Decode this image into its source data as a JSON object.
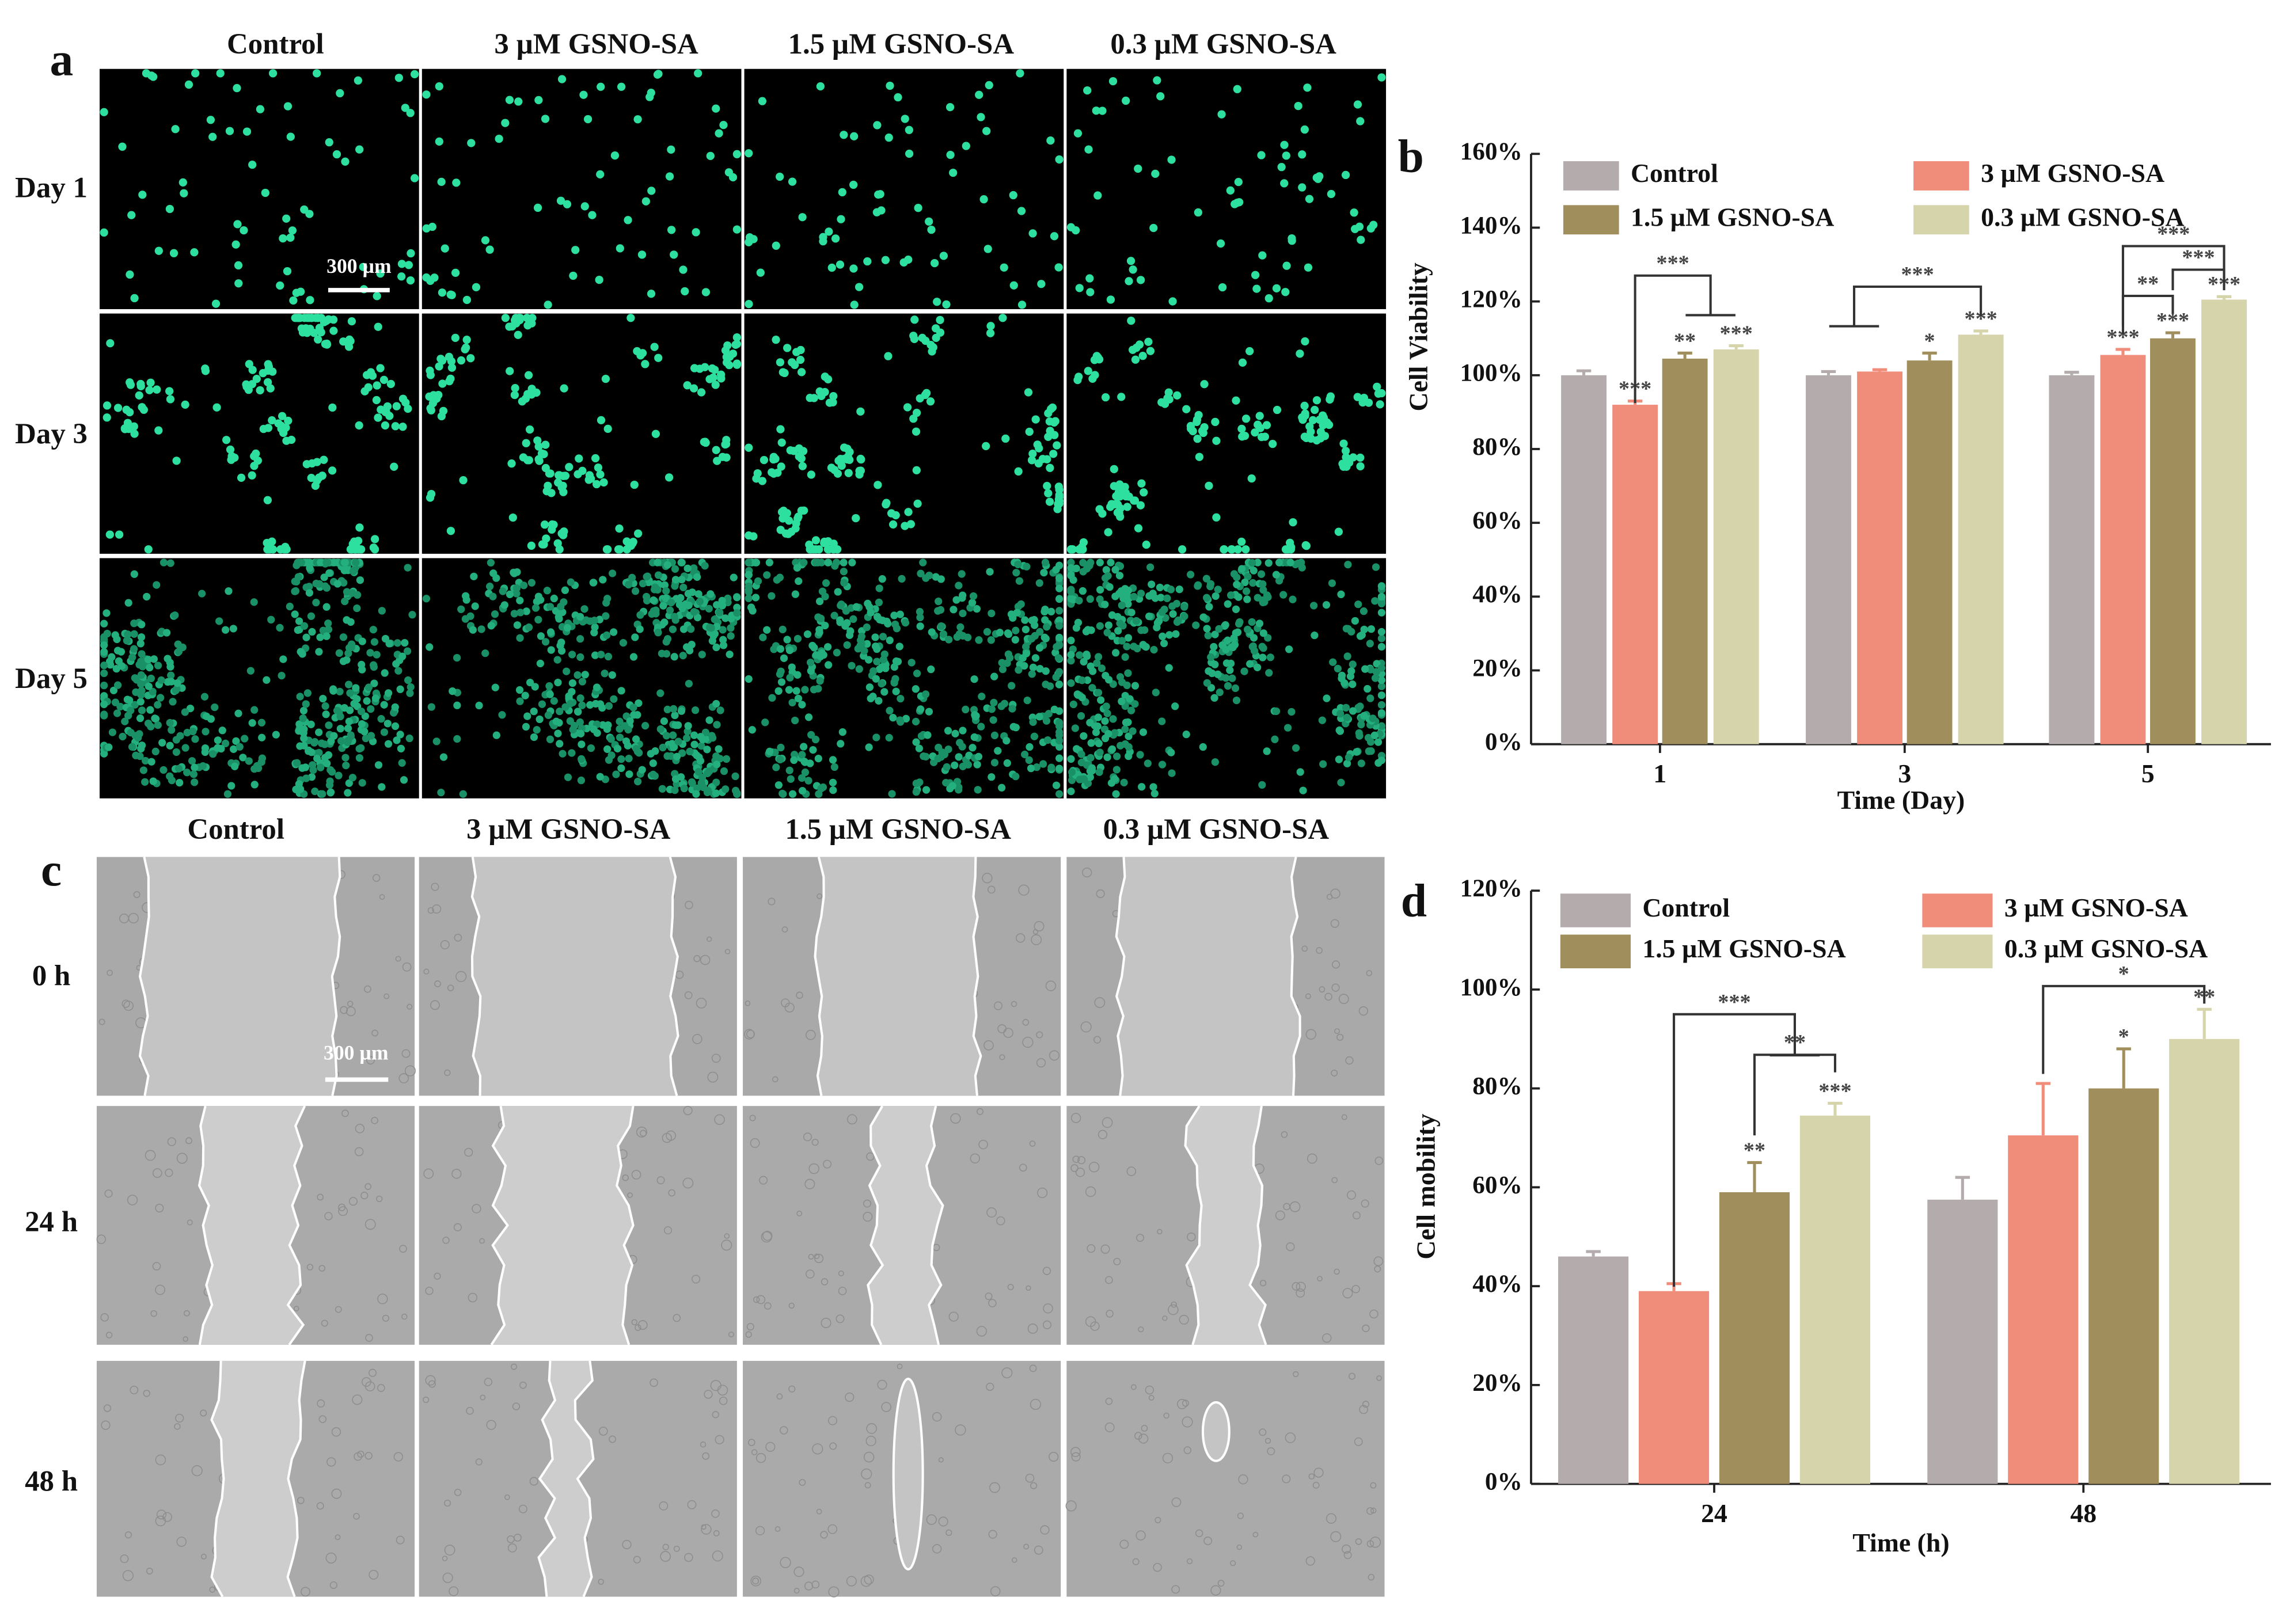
{
  "figure": {
    "panel_a": {
      "label": "a",
      "columns": [
        "Control",
        "3 µM GSNO-SA",
        "1.5 µM GSNO-SA",
        "0.3 µM GSNO-SA"
      ],
      "rows": [
        "Day 1",
        "Day 3",
        "Day 5"
      ],
      "scale_bar": "300 µm"
    },
    "panel_c": {
      "label": "c",
      "columns": [
        "Control",
        "3 µM GSNO-SA",
        "1.5 µM GSNO-SA",
        "0.3 µM GSNO-SA"
      ],
      "rows": [
        "0 h",
        "24 h",
        "48 h"
      ],
      "scale_bar": "300 µm"
    }
  },
  "chart_data": [
    {
      "type": "bar",
      "panel_label": "b",
      "x_label": "Time (Day)",
      "y_label": "Cell Viability",
      "categories": [
        "1",
        "3",
        "5"
      ],
      "ylim": [
        0,
        160
      ],
      "yticks": [
        {
          "value": 0,
          "label": "0%"
        },
        {
          "value": 20,
          "label": "20%"
        },
        {
          "value": 40,
          "label": "40%"
        },
        {
          "value": 60,
          "label": "60%"
        },
        {
          "value": 80,
          "label": "80%"
        },
        {
          "value": 100,
          "label": "100%"
        },
        {
          "value": 120,
          "label": "120%"
        },
        {
          "value": 140,
          "label": "140%"
        },
        {
          "value": 160,
          "label": "160%"
        }
      ],
      "legend": "top",
      "series": [
        {
          "name": "Control",
          "color": "#b3abac",
          "values": [
            100,
            100,
            100
          ],
          "errors": [
            1.2,
            1,
            0.8
          ]
        },
        {
          "name": "3 µM GSNO-SA",
          "color": "#f08c7a",
          "values": [
            92,
            101,
            105.5
          ],
          "errors": [
            1,
            0.5,
            1.5
          ],
          "annotations": [
            "***",
            null,
            "***"
          ]
        },
        {
          "name": "1.5 µM GSNO-SA",
          "color": "#a08f5c",
          "values": [
            104.5,
            104,
            110
          ],
          "errors": [
            1.5,
            2,
            1.5
          ],
          "annotations": [
            "**",
            "*",
            "***"
          ]
        },
        {
          "name": "0.3 µM GSNO-SA",
          "color": "#d5d4aa",
          "values": [
            107,
            111,
            120.5
          ],
          "errors": [
            1,
            1,
            0.8
          ],
          "annotations": [
            "***",
            "***",
            "***"
          ]
        }
      ],
      "brackets": [
        "***",
        "***",
        "***",
        "***",
        "**"
      ]
    },
    {
      "type": "bar",
      "panel_label": "d",
      "x_label": "Time (h)",
      "y_label": "Cell mobility",
      "categories": [
        "24",
        "48"
      ],
      "ylim": [
        0,
        120
      ],
      "yticks": [
        {
          "value": 0,
          "label": "0%"
        },
        {
          "value": 20,
          "label": "20%"
        },
        {
          "value": 40,
          "label": "40%"
        },
        {
          "value": 60,
          "label": "60%"
        },
        {
          "value": 80,
          "label": "80%"
        },
        {
          "value": 100,
          "label": "100%"
        },
        {
          "value": 120,
          "label": "120%"
        }
      ],
      "legend": "top",
      "series": [
        {
          "name": "Control",
          "color": "#b3abac",
          "values": [
            46,
            57.5
          ],
          "errors": [
            1,
            4.5
          ]
        },
        {
          "name": "3 µM GSNO-SA",
          "color": "#f08c7a",
          "values": [
            39,
            70.5
          ],
          "errors": [
            1.5,
            10.5
          ]
        },
        {
          "name": "1.5 µM GSNO-SA",
          "color": "#a08f5c",
          "values": [
            59,
            80
          ],
          "errors": [
            6,
            8
          ],
          "annotations": [
            "**",
            "*"
          ]
        },
        {
          "name": "0.3 µM GSNO-SA",
          "color": "#d5d4aa",
          "values": [
            74.5,
            90
          ],
          "errors": [
            2.5,
            6
          ],
          "annotations": [
            "***",
            "**"
          ]
        }
      ],
      "brackets": [
        "***",
        "**",
        "*"
      ]
    }
  ]
}
